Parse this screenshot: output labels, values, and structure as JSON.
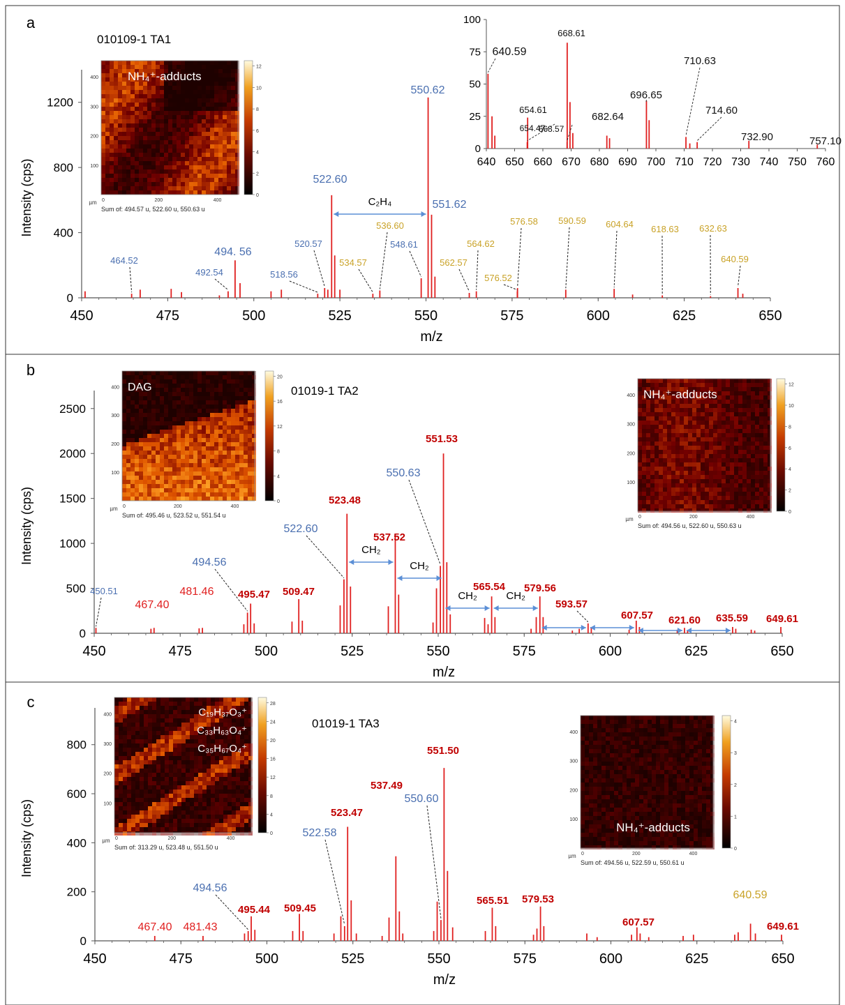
{
  "colors": {
    "red": "#e02020",
    "blue": "#4a6fb0",
    "gold": "#c9a227",
    "darkred": "#c00000",
    "axis": "#555555"
  },
  "chart_data": [
    {
      "panel_label": "a",
      "sample": "010109-1 TA1",
      "type": "bar",
      "xlabel": "m/z",
      "ylabel": "Intensity (cps)",
      "xlim": [
        450,
        650
      ],
      "ylim": [
        0,
        1400
      ],
      "xticks": [
        450,
        475,
        500,
        525,
        550,
        575,
        600,
        625,
        650
      ],
      "yticks": [
        0,
        400,
        800,
        1200
      ],
      "peaks": [
        [
          451,
          40
        ],
        [
          464.52,
          25
        ],
        [
          467,
          50
        ],
        [
          476,
          55
        ],
        [
          479,
          35
        ],
        [
          490,
          15
        ],
        [
          492.54,
          40
        ],
        [
          494.56,
          230
        ],
        [
          496,
          90
        ],
        [
          505,
          40
        ],
        [
          508,
          50
        ],
        [
          518.56,
          25
        ],
        [
          520.57,
          60
        ],
        [
          521.5,
          50
        ],
        [
          522.6,
          630
        ],
        [
          523.5,
          260
        ],
        [
          525,
          50
        ],
        [
          534.57,
          25
        ],
        [
          536.6,
          45
        ],
        [
          548.61,
          120
        ],
        [
          550.62,
          1230
        ],
        [
          551.62,
          510
        ],
        [
          552.6,
          130
        ],
        [
          562.57,
          30
        ],
        [
          564.62,
          40
        ],
        [
          576.52,
          40
        ],
        [
          576.58,
          60
        ],
        [
          590.59,
          50
        ],
        [
          604.64,
          55
        ],
        [
          610,
          20
        ],
        [
          618.63,
          15
        ],
        [
          632.63,
          10
        ],
        [
          640.59,
          60
        ],
        [
          642,
          25
        ]
      ],
      "labels": [
        {
          "x": 464.52,
          "text": "464.52",
          "color": "blue"
        },
        {
          "x": 492.54,
          "text": "492.54",
          "color": "blue"
        },
        {
          "x": 494.56,
          "text": "494. 56",
          "color": "blue"
        },
        {
          "x": 518.56,
          "text": "518.56",
          "color": "blue"
        },
        {
          "x": 520.57,
          "text": "520.57",
          "color": "blue"
        },
        {
          "x": 522.6,
          "text": "522.60",
          "color": "blue"
        },
        {
          "x": 534.57,
          "text": "534.57",
          "color": "gold"
        },
        {
          "x": 536.6,
          "text": "536.60",
          "color": "gold"
        },
        {
          "x": 548.61,
          "text": "548.61",
          "color": "blue"
        },
        {
          "x": 550.62,
          "text": "550.62",
          "color": "blue"
        },
        {
          "x": 551.62,
          "text": "551.62",
          "color": "blue"
        },
        {
          "x": 562.57,
          "text": "562.57",
          "color": "gold"
        },
        {
          "x": 564.62,
          "text": "564.62",
          "color": "gold"
        },
        {
          "x": 576.52,
          "text": "576.52",
          "color": "gold"
        },
        {
          "x": 576.58,
          "text": "576.58",
          "color": "gold"
        },
        {
          "x": 590.59,
          "text": "590.59",
          "color": "gold"
        },
        {
          "x": 604.64,
          "text": "604.64",
          "color": "gold"
        },
        {
          "x": 618.63,
          "text": "618.63",
          "color": "gold"
        },
        {
          "x": 632.63,
          "text": "632.63",
          "color": "gold"
        },
        {
          "x": 640.59,
          "text": "640.59",
          "color": "gold"
        }
      ],
      "annotations": [
        {
          "from": 522.6,
          "to": 550.62,
          "text": "C₂H₄"
        }
      ],
      "inset_spectrum": {
        "xlim": [
          640,
          760
        ],
        "ylim": [
          0,
          100
        ],
        "xticks": [
          640,
          650,
          660,
          670,
          680,
          690,
          700,
          710,
          720,
          730,
          740,
          750,
          760
        ],
        "yticks": [
          0,
          25,
          50,
          75,
          100
        ],
        "peaks": [
          [
            640.59,
            58
          ],
          [
            642,
            25
          ],
          [
            643,
            10
          ],
          [
            654.47,
            5
          ],
          [
            654.61,
            24
          ],
          [
            668.57,
            5
          ],
          [
            668.61,
            82
          ],
          [
            669.6,
            36
          ],
          [
            670.6,
            12
          ],
          [
            682.64,
            10
          ],
          [
            683.6,
            8
          ],
          [
            696.65,
            37
          ],
          [
            697.6,
            22
          ],
          [
            710.63,
            9
          ],
          [
            712,
            4
          ],
          [
            714.6,
            5
          ],
          [
            732.9,
            6
          ],
          [
            757.1,
            3
          ]
        ],
        "labels": [
          "640.59",
          "654.61",
          "654.47",
          "668.61",
          "668.57",
          "682.64",
          "696.65",
          "710.63",
          "714.60",
          "732.90",
          "757.10"
        ]
      },
      "maps": [
        {
          "title": "NH₄⁺-adducts",
          "colorbar_max": "12",
          "colorbar_ticks": [
            "0",
            "2",
            "4",
            "6",
            "8",
            "10",
            "12"
          ],
          "caption": "Sum of: 494.57 u, 522.60 u, 550.63 u",
          "unit": "µm",
          "axis_ticks": [
            "400",
            "300",
            "200",
            "100",
            "0",
            "200",
            "400"
          ]
        }
      ]
    },
    {
      "panel_label": "b",
      "sample": "01019-1 TA2",
      "type": "bar",
      "xlabel": "m/z",
      "ylabel": "Intensity (cps)",
      "xlim": [
        450,
        650
      ],
      "ylim": [
        0,
        2700
      ],
      "xticks": [
        450,
        475,
        500,
        525,
        550,
        575,
        600,
        625,
        650
      ],
      "yticks": [
        0,
        500,
        1000,
        1500,
        2000,
        2500
      ],
      "peaks": [
        [
          450.51,
          60
        ],
        [
          466.5,
          50
        ],
        [
          467.4,
          60
        ],
        [
          480.5,
          55
        ],
        [
          481.46,
          60
        ],
        [
          493.5,
          100
        ],
        [
          494.56,
          230
        ],
        [
          495.47,
          330
        ],
        [
          496.5,
          110
        ],
        [
          507.5,
          130
        ],
        [
          509.47,
          380
        ],
        [
          510.5,
          140
        ],
        [
          521.5,
          310
        ],
        [
          522.6,
          600
        ],
        [
          523.48,
          1330
        ],
        [
          524.5,
          520
        ],
        [
          535.5,
          300
        ],
        [
          537.52,
          1090
        ],
        [
          538.5,
          430
        ],
        [
          548.5,
          120
        ],
        [
          549.5,
          500
        ],
        [
          550.63,
          750
        ],
        [
          551.53,
          2000
        ],
        [
          552.5,
          790
        ],
        [
          553.5,
          210
        ],
        [
          563.5,
          170
        ],
        [
          564.5,
          100
        ],
        [
          565.54,
          410
        ],
        [
          566.5,
          180
        ],
        [
          577,
          50
        ],
        [
          578.5,
          180
        ],
        [
          579.56,
          410
        ],
        [
          580.5,
          180
        ],
        [
          589,
          30
        ],
        [
          591,
          50
        ],
        [
          593.57,
          110
        ],
        [
          594.5,
          70
        ],
        [
          605.5,
          40
        ],
        [
          607.57,
          140
        ],
        [
          608.5,
          70
        ],
        [
          619.5,
          40
        ],
        [
          621.6,
          60
        ],
        [
          622.5,
          30
        ],
        [
          635.59,
          70
        ],
        [
          636.5,
          50
        ],
        [
          641,
          40
        ],
        [
          642,
          30
        ],
        [
          649.61,
          70
        ]
      ],
      "labels": [
        {
          "x": 450.51,
          "text": "450.51",
          "color": "blue"
        },
        {
          "x": 467.4,
          "text": "467.40",
          "color": "red"
        },
        {
          "x": 481.46,
          "text": "481.46",
          "color": "red"
        },
        {
          "x": 494.56,
          "text": "494.56",
          "color": "blue"
        },
        {
          "x": 495.47,
          "text": "495.47",
          "color": "darkred",
          "bold": true
        },
        {
          "x": 509.47,
          "text": "509.47",
          "color": "darkred",
          "bold": true
        },
        {
          "x": 522.6,
          "text": "522.60",
          "color": "blue"
        },
        {
          "x": 523.48,
          "text": "523.48",
          "color": "darkred",
          "bold": true
        },
        {
          "x": 537.52,
          "text": "537.52",
          "color": "darkred",
          "bold": true
        },
        {
          "x": 550.63,
          "text": "550.63",
          "color": "blue"
        },
        {
          "x": 551.53,
          "text": "551.53",
          "color": "darkred",
          "bold": true
        },
        {
          "x": 565.54,
          "text": "565.54",
          "color": "darkred",
          "bold": true
        },
        {
          "x": 579.56,
          "text": "579.56",
          "color": "darkred",
          "bold": true
        },
        {
          "x": 593.57,
          "text": "593.57",
          "color": "darkred",
          "bold": true
        },
        {
          "x": 607.57,
          "text": "607.57",
          "color": "darkred",
          "bold": true
        },
        {
          "x": 621.6,
          "text": "621.60",
          "color": "darkred",
          "bold": true
        },
        {
          "x": 635.59,
          "text": "635.59",
          "color": "darkred",
          "bold": true
        },
        {
          "x": 649.61,
          "text": "649.61",
          "color": "darkred",
          "bold": true
        }
      ],
      "annotations": [
        {
          "from": 523.48,
          "to": 537.52,
          "text": "CH₂"
        },
        {
          "from": 537.52,
          "to": 551.53,
          "text": "CH₂"
        },
        {
          "from": 551.53,
          "to": 565.54,
          "text": "CH₂"
        },
        {
          "from": 565.54,
          "to": 579.56,
          "text": "CH₂"
        },
        {
          "from": 579.56,
          "to": 593.57,
          "text": ""
        },
        {
          "from": 593.57,
          "to": 607.57,
          "text": ""
        },
        {
          "from": 607.57,
          "to": 621.6,
          "text": ""
        },
        {
          "from": 621.6,
          "to": 635.59,
          "text": ""
        }
      ],
      "maps": [
        {
          "title": "DAG",
          "colorbar_max": "20",
          "colorbar_ticks": [
            "0",
            "4",
            "8",
            "12",
            "16",
            "20"
          ],
          "caption": "Sum of: 495.46 u, 523.52 u, 551.54 u",
          "unit": "µm",
          "axis_ticks": [
            "400",
            "300",
            "200",
            "100",
            "0",
            "200",
            "400"
          ]
        },
        {
          "title": "NH₄⁺-adducts",
          "colorbar_max": "12",
          "colorbar_ticks": [
            "0",
            "2",
            "4",
            "6",
            "8",
            "10",
            "12"
          ],
          "caption": "Sum of: 494.56 u, 522.60 u, 550.63 u",
          "unit": "µm",
          "axis_ticks": [
            "400",
            "300",
            "200",
            "100",
            "0",
            "200",
            "400"
          ]
        }
      ]
    },
    {
      "panel_label": "c",
      "sample": "01019-1 TA3",
      "type": "bar",
      "xlabel": "m/z",
      "ylabel": "Intensity (cps)",
      "xlim": [
        450,
        650
      ],
      "ylim": [
        0,
        950
      ],
      "xticks": [
        450,
        475,
        500,
        525,
        550,
        575,
        600,
        625,
        650
      ],
      "yticks": [
        0,
        200,
        400,
        600,
        800
      ],
      "peaks": [
        [
          467.4,
          20
        ],
        [
          481.43,
          20
        ],
        [
          493.5,
          30
        ],
        [
          494.56,
          40
        ],
        [
          495.44,
          100
        ],
        [
          496.5,
          45
        ],
        [
          507.5,
          40
        ],
        [
          509.45,
          110
        ],
        [
          510.5,
          40
        ],
        [
          519.5,
          30
        ],
        [
          521.5,
          100
        ],
        [
          522.58,
          60
        ],
        [
          523.47,
          465
        ],
        [
          524.5,
          165
        ],
        [
          526,
          30
        ],
        [
          533.5,
          20
        ],
        [
          535.5,
          95
        ],
        [
          537.49,
          345
        ],
        [
          538.5,
          120
        ],
        [
          539.5,
          30
        ],
        [
          548.5,
          40
        ],
        [
          549.5,
          160
        ],
        [
          550.6,
          85
        ],
        [
          551.5,
          705
        ],
        [
          552.5,
          285
        ],
        [
          554,
          55
        ],
        [
          563.5,
          40
        ],
        [
          565.51,
          135
        ],
        [
          566.5,
          60
        ],
        [
          577.5,
          25
        ],
        [
          578.5,
          50
        ],
        [
          579.53,
          140
        ],
        [
          580.5,
          60
        ],
        [
          593,
          30
        ],
        [
          596,
          15
        ],
        [
          606,
          25
        ],
        [
          607.57,
          55
        ],
        [
          608.5,
          30
        ],
        [
          611,
          15
        ],
        [
          621,
          20
        ],
        [
          624,
          25
        ],
        [
          636,
          25
        ],
        [
          637,
          35
        ],
        [
          640.59,
          70
        ],
        [
          642,
          30
        ],
        [
          649.61,
          25
        ]
      ],
      "labels": [
        {
          "x": 467.4,
          "text": "467.40",
          "color": "red"
        },
        {
          "x": 481.43,
          "text": "481.43",
          "color": "red"
        },
        {
          "x": 494.56,
          "text": "494.56",
          "color": "blue"
        },
        {
          "x": 495.44,
          "text": "495.44",
          "color": "darkred",
          "bold": true
        },
        {
          "x": 509.45,
          "text": "509.45",
          "color": "darkred",
          "bold": true
        },
        {
          "x": 522.58,
          "text": "522.58",
          "color": "blue"
        },
        {
          "x": 523.47,
          "text": "523.47",
          "color": "darkred",
          "bold": true
        },
        {
          "x": 537.49,
          "text": "537.49",
          "color": "darkred",
          "bold": true
        },
        {
          "x": 550.6,
          "text": "550.60",
          "color": "blue"
        },
        {
          "x": 551.5,
          "text": "551.50",
          "color": "darkred",
          "bold": true
        },
        {
          "x": 565.51,
          "text": "565.51",
          "color": "darkred",
          "bold": true
        },
        {
          "x": 579.53,
          "text": "579.53",
          "color": "darkred",
          "bold": true
        },
        {
          "x": 607.57,
          "text": "607.57",
          "color": "darkred",
          "bold": true
        },
        {
          "x": 640.59,
          "text": "640.59",
          "color": "gold"
        },
        {
          "x": 649.61,
          "text": "649.61",
          "color": "darkred",
          "bold": true
        }
      ],
      "annotations": [],
      "maps": [
        {
          "title": "",
          "formulas": [
            "C₁₉H₃₇O₃⁺",
            "C₃₃H₆₃O₄⁺",
            "C₃₅H₆₇O₄⁺"
          ],
          "colorbar_max": "28",
          "colorbar_ticks": [
            "0",
            "4",
            "8",
            "12",
            "16",
            "20",
            "24",
            "28"
          ],
          "caption": "Sum of: 313.29 u, 523.48 u, 551.50 u",
          "unit": "µm",
          "axis_ticks": [
            "400",
            "300",
            "200",
            "100",
            "0",
            "200",
            "400"
          ]
        },
        {
          "title": "NH₄⁺-adducts",
          "colorbar_max": "4",
          "colorbar_ticks": [
            "0",
            "1",
            "2",
            "3",
            "4"
          ],
          "caption": "Sum of: 494.56 u, 522.59 u, 550.61 u",
          "unit": "µm",
          "axis_ticks": [
            "400",
            "300",
            "200",
            "100",
            "0",
            "200",
            "400"
          ]
        }
      ]
    }
  ]
}
